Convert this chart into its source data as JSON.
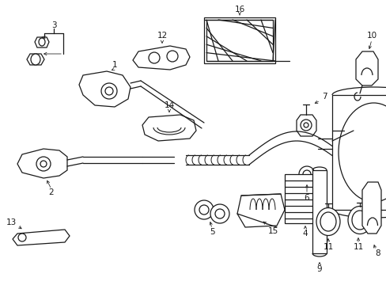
{
  "bg_color": "#ffffff",
  "line_color": "#1a1a1a",
  "figsize": [
    4.89,
    3.6
  ],
  "dpi": 100,
  "lw": 0.9
}
